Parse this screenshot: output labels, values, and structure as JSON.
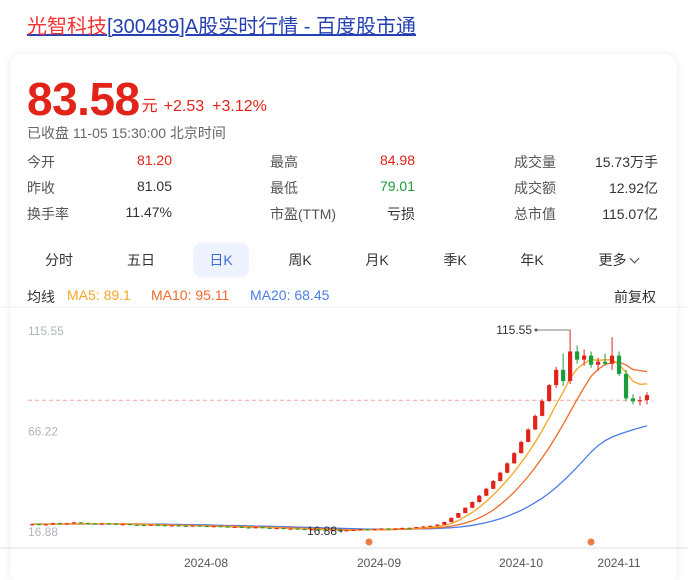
{
  "page": {
    "title_highlight": "光智科技",
    "title_rest": "[300489]A股实时行情 - 百度股市通"
  },
  "quote": {
    "price": "83.58",
    "unit": "元",
    "change": "+2.53",
    "change_pct": "+3.12%",
    "status": "已收盘 11-05 15:30:00 北京时间"
  },
  "stats": [
    {
      "label": "今开",
      "value": "81.20",
      "color": "#e1231a"
    },
    {
      "label": "最高",
      "value": "84.98",
      "color": "#e1231a"
    },
    {
      "label": "成交量",
      "value": "15.73万手",
      "color": "#333333"
    },
    {
      "label": "昨收",
      "value": "81.05",
      "color": "#333333"
    },
    {
      "label": "最低",
      "value": "79.01",
      "color": "#1a9e3b"
    },
    {
      "label": "成交额",
      "value": "12.92亿",
      "color": "#333333"
    },
    {
      "label": "换手率",
      "value": "11.47%",
      "color": "#333333"
    },
    {
      "label": "市盈(TTM)",
      "value": "亏损",
      "color": "#333333"
    },
    {
      "label": "总市值",
      "value": "115.07亿",
      "color": "#333333"
    }
  ],
  "tabs": [
    "分时",
    "五日",
    "日K",
    "周K",
    "月K",
    "季K",
    "年K",
    "更多"
  ],
  "active_tab": "日K",
  "ma": {
    "label": "均线",
    "ma5": "MA5: 89.1",
    "ma10": "MA10: 95.11",
    "ma20": "MA20: 68.45",
    "adjust": "前复权",
    "colors": {
      "ma5": "#f5a623",
      "ma10": "#f06a2a",
      "ma20": "#4a7de8"
    }
  },
  "chart_data": {
    "type": "candlestick",
    "x_labels": [
      "2024-08",
      "2024-09",
      "2024-10",
      "2024-11"
    ],
    "y_labels": [
      "115.55",
      "66.22",
      "16.88"
    ],
    "ylim": [
      16.88,
      115.55
    ],
    "high_annotation": "115.55",
    "low_annotation": "16.88",
    "prev_close_line": 81.05,
    "up_color": "#e1231a",
    "down_color": "#1a9e3b",
    "ohlc": [
      [
        20.0,
        20.5,
        19.5,
        20.2
      ],
      [
        20.2,
        20.6,
        19.8,
        19.9
      ],
      [
        19.9,
        20.3,
        19.6,
        20.1
      ],
      [
        20.1,
        20.9,
        20.0,
        20.7
      ],
      [
        20.7,
        21.0,
        20.2,
        20.4
      ],
      [
        20.4,
        20.8,
        20.0,
        20.6
      ],
      [
        20.6,
        21.4,
        20.5,
        21.1
      ],
      [
        21.1,
        21.3,
        20.5,
        20.7
      ],
      [
        20.7,
        21.0,
        20.3,
        20.5
      ],
      [
        20.5,
        20.8,
        20.1,
        20.3
      ],
      [
        20.3,
        20.7,
        20.0,
        20.5
      ],
      [
        20.5,
        20.9,
        20.2,
        20.4
      ],
      [
        20.4,
        20.6,
        19.9,
        20.0
      ],
      [
        20.0,
        20.4,
        19.7,
        20.2
      ],
      [
        20.2,
        20.5,
        19.8,
        19.9
      ],
      [
        19.9,
        20.2,
        19.6,
        19.8
      ],
      [
        19.8,
        20.1,
        19.5,
        19.7
      ],
      [
        19.7,
        20.0,
        19.4,
        19.9
      ],
      [
        19.9,
        20.2,
        19.6,
        19.7
      ],
      [
        19.7,
        19.9,
        19.3,
        19.5
      ],
      [
        19.5,
        19.8,
        19.2,
        19.6
      ],
      [
        19.6,
        19.9,
        19.3,
        19.4
      ],
      [
        19.4,
        19.7,
        19.1,
        19.3
      ],
      [
        19.3,
        19.6,
        19.0,
        19.5
      ],
      [
        19.5,
        19.8,
        19.2,
        19.3
      ],
      [
        19.3,
        19.5,
        18.9,
        19.0
      ],
      [
        19.0,
        19.3,
        18.8,
        19.2
      ],
      [
        19.2,
        19.4,
        18.9,
        19.0
      ],
      [
        19.0,
        19.2,
        18.6,
        18.7
      ],
      [
        18.7,
        19.0,
        18.5,
        18.9
      ],
      [
        18.9,
        19.1,
        18.5,
        18.6
      ],
      [
        18.6,
        18.9,
        18.3,
        18.5
      ],
      [
        18.5,
        18.8,
        18.2,
        18.7
      ],
      [
        18.7,
        18.9,
        18.3,
        18.4
      ],
      [
        18.4,
        18.6,
        18.0,
        18.2
      ],
      [
        18.2,
        18.5,
        17.9,
        18.3
      ],
      [
        18.3,
        18.5,
        17.8,
        17.9
      ],
      [
        17.9,
        18.2,
        17.6,
        18.0
      ],
      [
        18.0,
        18.3,
        17.7,
        17.8
      ],
      [
        17.8,
        18.0,
        17.4,
        17.6
      ],
      [
        17.6,
        17.9,
        17.3,
        17.7
      ],
      [
        17.7,
        17.9,
        17.2,
        17.4
      ],
      [
        17.4,
        17.6,
        17.0,
        17.2
      ],
      [
        17.2,
        17.5,
        16.9,
        17.3
      ],
      [
        17.3,
        17.5,
        16.88,
        17.0
      ],
      [
        17.0,
        17.4,
        16.9,
        17.2
      ],
      [
        17.2,
        17.6,
        17.0,
        17.4
      ],
      [
        17.4,
        17.9,
        17.2,
        17.7
      ],
      [
        17.7,
        18.1,
        17.4,
        17.6
      ],
      [
        17.6,
        18.0,
        17.3,
        17.8
      ],
      [
        17.8,
        18.3,
        17.6,
        18.1
      ],
      [
        18.1,
        18.4,
        17.8,
        17.9
      ],
      [
        17.9,
        18.2,
        17.6,
        18.1
      ],
      [
        18.1,
        18.5,
        17.9,
        18.4
      ],
      [
        18.4,
        18.7,
        18.1,
        18.3
      ],
      [
        18.3,
        18.9,
        18.2,
        18.8
      ],
      [
        18.8,
        19.3,
        18.6,
        19.1
      ],
      [
        19.1,
        19.6,
        18.9,
        19.4
      ],
      [
        19.4,
        20.2,
        19.2,
        20.0
      ],
      [
        20.0,
        21.5,
        19.9,
        21.3
      ],
      [
        21.3,
        23.3,
        21.1,
        23.4
      ],
      [
        23.4,
        25.8,
        23.2,
        25.7
      ],
      [
        25.7,
        28.5,
        25.5,
        28.3
      ],
      [
        28.3,
        31.4,
        28.1,
        31.1
      ],
      [
        31.1,
        34.6,
        30.9,
        34.2
      ],
      [
        34.2,
        38.1,
        34.0,
        37.6
      ],
      [
        37.6,
        41.9,
        37.4,
        41.4
      ],
      [
        41.4,
        46.0,
        41.2,
        45.5
      ],
      [
        45.5,
        50.6,
        45.3,
        50.1
      ],
      [
        50.1,
        55.6,
        49.9,
        55.1
      ],
      [
        55.1,
        61.2,
        54.9,
        60.6
      ],
      [
        60.6,
        67.3,
        60.4,
        66.7
      ],
      [
        66.7,
        74.0,
        66.5,
        73.4
      ],
      [
        73.4,
        81.5,
        73.2,
        80.7
      ],
      [
        80.7,
        89.0,
        80.2,
        88.5
      ],
      [
        88.5,
        97.5,
        87.0,
        96.0
      ],
      [
        96.0,
        104.0,
        88.0,
        90.5
      ],
      [
        90.5,
        115.55,
        89.0,
        105.0
      ],
      [
        105.0,
        108.0,
        99.0,
        101.0
      ],
      [
        101.0,
        106.0,
        98.0,
        103.0
      ],
      [
        103.0,
        105.0,
        97.0,
        98.5
      ],
      [
        98.5,
        102.0,
        95.5,
        100.0
      ],
      [
        100.0,
        104.0,
        98.0,
        99.0
      ],
      [
        99.0,
        112.0,
        96.0,
        103.0
      ],
      [
        103.0,
        105.0,
        93.0,
        94.0
      ],
      [
        94.0,
        96.0,
        80.5,
        82.0
      ],
      [
        82.0,
        84.0,
        79.0,
        80.5
      ],
      [
        80.5,
        83.0,
        78.5,
        81.05
      ],
      [
        81.2,
        84.98,
        79.01,
        83.58
      ]
    ],
    "ma5": [
      20.2,
      20.1,
      20.1,
      20.2,
      20.3,
      20.4,
      20.5,
      20.6,
      20.6,
      20.5,
      20.5,
      20.5,
      20.3,
      20.2,
      20.1,
      20.0,
      19.9,
      19.9,
      19.8,
      19.7,
      19.7,
      19.6,
      19.5,
      19.5,
      19.4,
      19.3,
      19.2,
      19.2,
      19.0,
      18.9,
      18.8,
      18.7,
      18.6,
      18.6,
      18.5,
      18.4,
      18.3,
      18.1,
      18.0,
      17.9,
      17.8,
      17.7,
      17.5,
      17.4,
      17.3,
      17.2,
      17.2,
      17.3,
      17.4,
      17.5,
      17.7,
      17.8,
      17.9,
      18.0,
      18.1,
      18.3,
      18.5,
      18.8,
      19.1,
      19.7,
      20.6,
      22.0,
      23.9,
      26.0,
      28.5,
      31.4,
      34.6,
      38.1,
      41.8,
      45.9,
      50.4,
      55.2,
      60.5,
      66.2,
      72.3,
      79.0,
      85.0,
      91.8,
      96.5,
      99.2,
      101.0,
      100.7,
      100.9,
      100.9,
      98.6,
      94.7,
      90.3,
      88.9,
      89.1
    ],
    "ma10": [
      20.2,
      20.2,
      20.2,
      20.2,
      20.2,
      20.3,
      20.3,
      20.4,
      20.4,
      20.4,
      20.4,
      20.4,
      20.4,
      20.4,
      20.3,
      20.3,
      20.2,
      20.1,
      20.0,
      19.9,
      19.8,
      19.8,
      19.7,
      19.6,
      19.6,
      19.5,
      19.4,
      19.3,
      19.3,
      19.2,
      19.1,
      19.0,
      18.9,
      18.8,
      18.7,
      18.6,
      18.5,
      18.4,
      18.3,
      18.2,
      18.1,
      18.0,
      17.9,
      17.8,
      17.6,
      17.5,
      17.4,
      17.4,
      17.4,
      17.4,
      17.5,
      17.5,
      17.6,
      17.7,
      17.8,
      17.9,
      18.1,
      18.3,
      18.5,
      18.8,
      19.3,
      19.9,
      20.8,
      21.9,
      23.3,
      25.1,
      27.2,
      29.8,
      32.7,
      36.0,
      39.7,
      43.7,
      48.1,
      52.8,
      57.8,
      63.3,
      69.1,
      75.3,
      81.5,
      87.3,
      92.8,
      96.2,
      98.6,
      99.6,
      99.7,
      98.4,
      96.1,
      95.6,
      95.11
    ],
    "ma20": [
      20.3,
      20.3,
      20.3,
      20.3,
      20.3,
      20.3,
      20.3,
      20.3,
      20.3,
      20.3,
      20.3,
      20.3,
      20.3,
      20.3,
      20.3,
      20.3,
      20.3,
      20.2,
      20.2,
      20.2,
      20.1,
      20.1,
      20.0,
      20.0,
      19.9,
      19.9,
      19.8,
      19.7,
      19.6,
      19.6,
      19.5,
      19.4,
      19.3,
      19.3,
      19.2,
      19.1,
      19.0,
      18.9,
      18.8,
      18.7,
      18.6,
      18.5,
      18.4,
      18.3,
      18.2,
      18.1,
      18.0,
      17.9,
      17.8,
      17.8,
      17.8,
      17.8,
      17.8,
      17.8,
      17.8,
      17.9,
      17.9,
      18.0,
      18.1,
      18.3,
      18.5,
      18.8,
      19.2,
      19.7,
      20.3,
      21.0,
      21.9,
      22.9,
      24.1,
      25.5,
      27.0,
      28.8,
      30.8,
      33.0,
      35.5,
      38.3,
      41.4,
      44.7,
      48.2,
      51.9,
      55.7,
      58.8,
      61.2,
      63.0,
      64.3,
      65.5,
      66.6,
      67.6,
      68.45
    ]
  }
}
